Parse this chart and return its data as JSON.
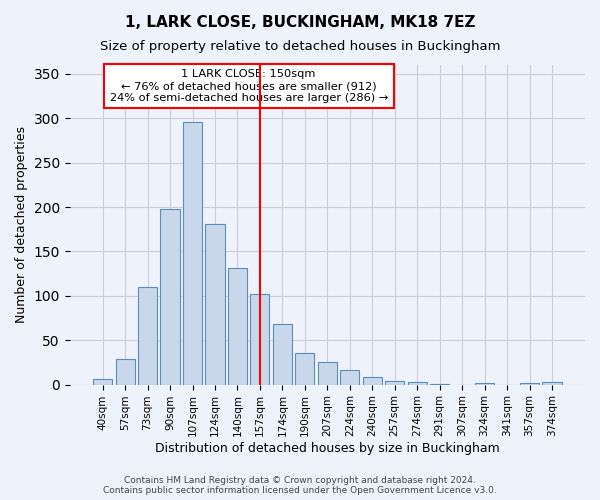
{
  "title1": "1, LARK CLOSE, BUCKINGHAM, MK18 7EZ",
  "title2": "Size of property relative to detached houses in Buckingham",
  "xlabel": "Distribution of detached houses by size in Buckingham",
  "ylabel": "Number of detached properties",
  "categories": [
    "40sqm",
    "57sqm",
    "73sqm",
    "90sqm",
    "107sqm",
    "124sqm",
    "140sqm",
    "157sqm",
    "174sqm",
    "190sqm",
    "207sqm",
    "224sqm",
    "240sqm",
    "257sqm",
    "274sqm",
    "291sqm",
    "307sqm",
    "324sqm",
    "341sqm",
    "357sqm",
    "374sqm"
  ],
  "values": [
    6,
    29,
    110,
    198,
    296,
    181,
    131,
    102,
    68,
    36,
    26,
    17,
    8,
    4,
    3,
    1,
    0,
    2,
    0,
    2,
    3
  ],
  "bar_color": "#c8d8ea",
  "bar_edge_color": "#5b8db8",
  "grid_color": "#ccccdd",
  "background_color": "#eef2fa",
  "vline_x": 7,
  "vline_color": "red",
  "annotation_text": "1 LARK CLOSE: 150sqm\n← 76% of detached houses are smaller (912)\n24% of semi-detached houses are larger (286) →",
  "annotation_box_color": "white",
  "annotation_box_edge": "red",
  "ylim": [
    0,
    360
  ],
  "footer1": "Contains HM Land Registry data © Crown copyright and database right 2024.",
  "footer2": "Contains public sector information licensed under the Open Government Licence v3.0."
}
